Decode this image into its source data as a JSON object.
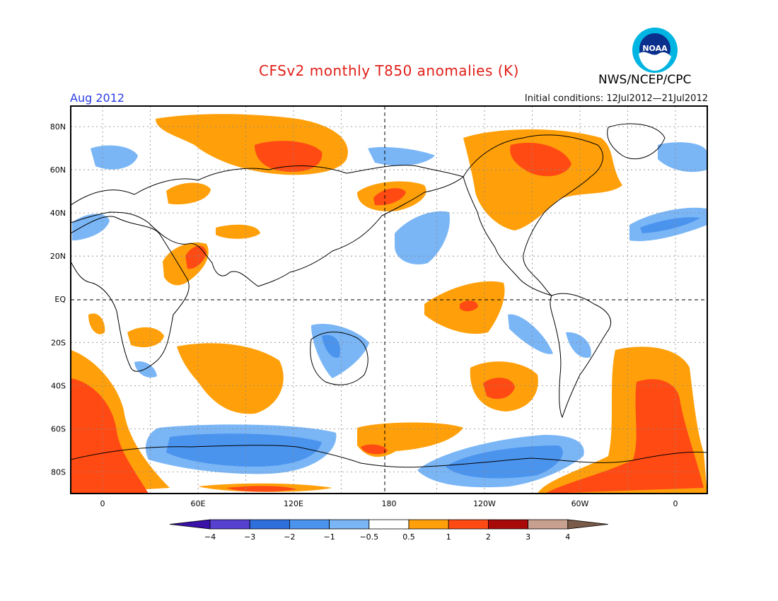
{
  "title": "CFSv2 monthly T850 anomalies (K)",
  "agency": "NWS/NCEP/CPC",
  "logo_text": "NOAA",
  "period": "Aug 2012",
  "initial_conditions": "Initial conditions: 12Jul2012—21Jul2012",
  "map": {
    "type": "global anomaly map",
    "projection": "cylindrical equidistant",
    "lon_range": [
      -20,
      380
    ],
    "lat_range": [
      -90,
      90
    ],
    "lat_ticks": [
      {
        "value": 80,
        "label": "80N"
      },
      {
        "value": 60,
        "label": "60N"
      },
      {
        "value": 40,
        "label": "40N"
      },
      {
        "value": 20,
        "label": "20N"
      },
      {
        "value": 0,
        "label": "EQ"
      },
      {
        "value": -20,
        "label": "20S"
      },
      {
        "value": -40,
        "label": "40S"
      },
      {
        "value": -60,
        "label": "60S"
      },
      {
        "value": -80,
        "label": "80S"
      }
    ],
    "lon_ticks": [
      {
        "value": 0,
        "label": "0"
      },
      {
        "value": 60,
        "label": "60E"
      },
      {
        "value": 120,
        "label": "120E"
      },
      {
        "value": 180,
        "label": "180"
      },
      {
        "value": 240,
        "label": "120W"
      },
      {
        "value": 300,
        "label": "60W"
      },
      {
        "value": 360,
        "label": "0"
      }
    ],
    "grid": "dotted"
  },
  "colorbar": {
    "bins": [
      {
        "color": "#5540d0"
      },
      {
        "color": "#2f6fdc"
      },
      {
        "color": "#4b94ee"
      },
      {
        "color": "#7ab6f6"
      },
      {
        "color": "#ffffff"
      },
      {
        "color": "#ffa00a"
      },
      {
        "color": "#ff4a14"
      },
      {
        "color": "#a80a0a"
      },
      {
        "color": "#c8a090"
      }
    ],
    "low_end_color": "#3a12a8",
    "high_end_color": "#7a5a48",
    "labels": [
      "−4",
      "−3",
      "−2",
      "−1",
      "−0.5",
      "0.5",
      "1",
      "2",
      "3",
      "4"
    ]
  }
}
